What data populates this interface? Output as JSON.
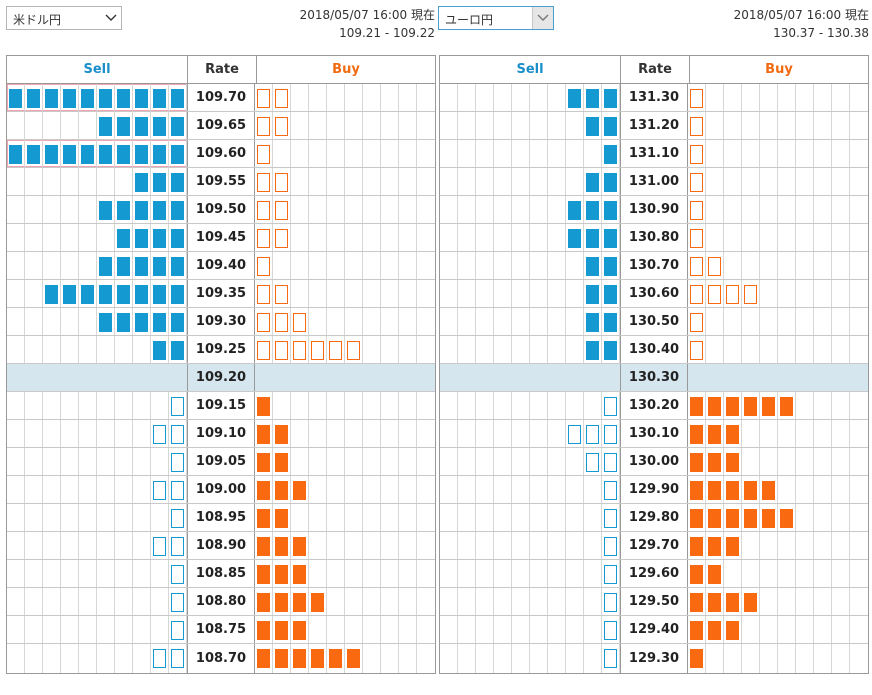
{
  "pair_a": {
    "selector_value": "米ドル円",
    "timestamp": "2018/05/07 16:00 現在",
    "quote": "109.21 - 109.22",
    "headers": {
      "sell": "Sell",
      "rate": "Rate",
      "buy": "Buy"
    },
    "rows": [
      {
        "rate": "109.70",
        "sell": 10,
        "sell_type": "filled",
        "buy": 2,
        "buy_type": "outline",
        "highlight": true
      },
      {
        "rate": "109.65",
        "sell": 5,
        "sell_type": "filled",
        "buy": 2,
        "buy_type": "outline"
      },
      {
        "rate": "109.60",
        "sell": 10,
        "sell_type": "filled",
        "buy": 1,
        "buy_type": "outline",
        "highlight": true
      },
      {
        "rate": "109.55",
        "sell": 3,
        "sell_type": "filled",
        "buy": 2,
        "buy_type": "outline"
      },
      {
        "rate": "109.50",
        "sell": 5,
        "sell_type": "filled",
        "buy": 2,
        "buy_type": "outline"
      },
      {
        "rate": "109.45",
        "sell": 4,
        "sell_type": "filled",
        "buy": 2,
        "buy_type": "outline"
      },
      {
        "rate": "109.40",
        "sell": 5,
        "sell_type": "filled",
        "buy": 1,
        "buy_type": "outline"
      },
      {
        "rate": "109.35",
        "sell": 8,
        "sell_type": "filled",
        "buy": 2,
        "buy_type": "outline"
      },
      {
        "rate": "109.30",
        "sell": 5,
        "sell_type": "filled",
        "buy": 3,
        "buy_type": "outline"
      },
      {
        "rate": "109.25",
        "sell": 2,
        "sell_type": "filled",
        "buy": 6,
        "buy_type": "outline"
      },
      {
        "rate": "109.20",
        "sell": 0,
        "sell_type": "filled",
        "buy": 0,
        "buy_type": "filled",
        "current": true
      },
      {
        "rate": "109.15",
        "sell": 1,
        "sell_type": "outline",
        "buy": 1,
        "buy_type": "filled"
      },
      {
        "rate": "109.10",
        "sell": 2,
        "sell_type": "outline",
        "buy": 2,
        "buy_type": "filled"
      },
      {
        "rate": "109.05",
        "sell": 1,
        "sell_type": "outline",
        "buy": 2,
        "buy_type": "filled"
      },
      {
        "rate": "109.00",
        "sell": 2,
        "sell_type": "outline",
        "buy": 3,
        "buy_type": "filled"
      },
      {
        "rate": "108.95",
        "sell": 1,
        "sell_type": "outline",
        "buy": 2,
        "buy_type": "filled"
      },
      {
        "rate": "108.90",
        "sell": 2,
        "sell_type": "outline",
        "buy": 3,
        "buy_type": "filled"
      },
      {
        "rate": "108.85",
        "sell": 1,
        "sell_type": "outline",
        "buy": 3,
        "buy_type": "filled"
      },
      {
        "rate": "108.80",
        "sell": 1,
        "sell_type": "outline",
        "buy": 4,
        "buy_type": "filled"
      },
      {
        "rate": "108.75",
        "sell": 1,
        "sell_type": "outline",
        "buy": 3,
        "buy_type": "filled"
      },
      {
        "rate": "108.70",
        "sell": 2,
        "sell_type": "outline",
        "buy": 6,
        "buy_type": "filled"
      }
    ]
  },
  "pair_b": {
    "selector_value": "ユーロ円",
    "timestamp": "2018/05/07 16:00 現在",
    "quote": "130.37 - 130.38",
    "headers": {
      "sell": "Sell",
      "rate": "Rate",
      "buy": "Buy"
    },
    "rows": [
      {
        "rate": "131.30",
        "sell": 3,
        "sell_type": "filled",
        "buy": 1,
        "buy_type": "outline"
      },
      {
        "rate": "131.20",
        "sell": 2,
        "sell_type": "filled",
        "buy": 1,
        "buy_type": "outline"
      },
      {
        "rate": "131.10",
        "sell": 1,
        "sell_type": "filled",
        "buy": 1,
        "buy_type": "outline"
      },
      {
        "rate": "131.00",
        "sell": 2,
        "sell_type": "filled",
        "buy": 1,
        "buy_type": "outline"
      },
      {
        "rate": "130.90",
        "sell": 3,
        "sell_type": "filled",
        "buy": 1,
        "buy_type": "outline"
      },
      {
        "rate": "130.80",
        "sell": 3,
        "sell_type": "filled",
        "buy": 1,
        "buy_type": "outline"
      },
      {
        "rate": "130.70",
        "sell": 2,
        "sell_type": "filled",
        "buy": 2,
        "buy_type": "outline"
      },
      {
        "rate": "130.60",
        "sell": 2,
        "sell_type": "filled",
        "buy": 4,
        "buy_type": "outline"
      },
      {
        "rate": "130.50",
        "sell": 2,
        "sell_type": "filled",
        "buy": 1,
        "buy_type": "outline"
      },
      {
        "rate": "130.40",
        "sell": 2,
        "sell_type": "filled",
        "buy": 1,
        "buy_type": "outline"
      },
      {
        "rate": "130.30",
        "sell": 0,
        "sell_type": "filled",
        "buy": 0,
        "buy_type": "filled",
        "current": true
      },
      {
        "rate": "130.20",
        "sell": 1,
        "sell_type": "outline",
        "buy": 6,
        "buy_type": "filled"
      },
      {
        "rate": "130.10",
        "sell": 3,
        "sell_type": "outline",
        "buy": 3,
        "buy_type": "filled"
      },
      {
        "rate": "130.00",
        "sell": 2,
        "sell_type": "outline",
        "buy": 3,
        "buy_type": "filled"
      },
      {
        "rate": "129.90",
        "sell": 1,
        "sell_type": "outline",
        "buy": 5,
        "buy_type": "filled"
      },
      {
        "rate": "129.80",
        "sell": 1,
        "sell_type": "outline",
        "buy": 6,
        "buy_type": "filled"
      },
      {
        "rate": "129.70",
        "sell": 1,
        "sell_type": "outline",
        "buy": 3,
        "buy_type": "filled"
      },
      {
        "rate": "129.60",
        "sell": 1,
        "sell_type": "outline",
        "buy": 2,
        "buy_type": "filled"
      },
      {
        "rate": "129.50",
        "sell": 1,
        "sell_type": "outline",
        "buy": 4,
        "buy_type": "filled"
      },
      {
        "rate": "129.40",
        "sell": 1,
        "sell_type": "outline",
        "buy": 3,
        "buy_type": "filled"
      },
      {
        "rate": "129.30",
        "sell": 1,
        "sell_type": "outline",
        "buy": 1,
        "buy_type": "filled"
      }
    ]
  },
  "colors": {
    "sell": "#1499d0",
    "buy": "#f96a10",
    "current_row": "#d6e6ee",
    "highlight": "#f1a4b0"
  },
  "icons": {
    "dropdown": "chevron-down-icon"
  }
}
